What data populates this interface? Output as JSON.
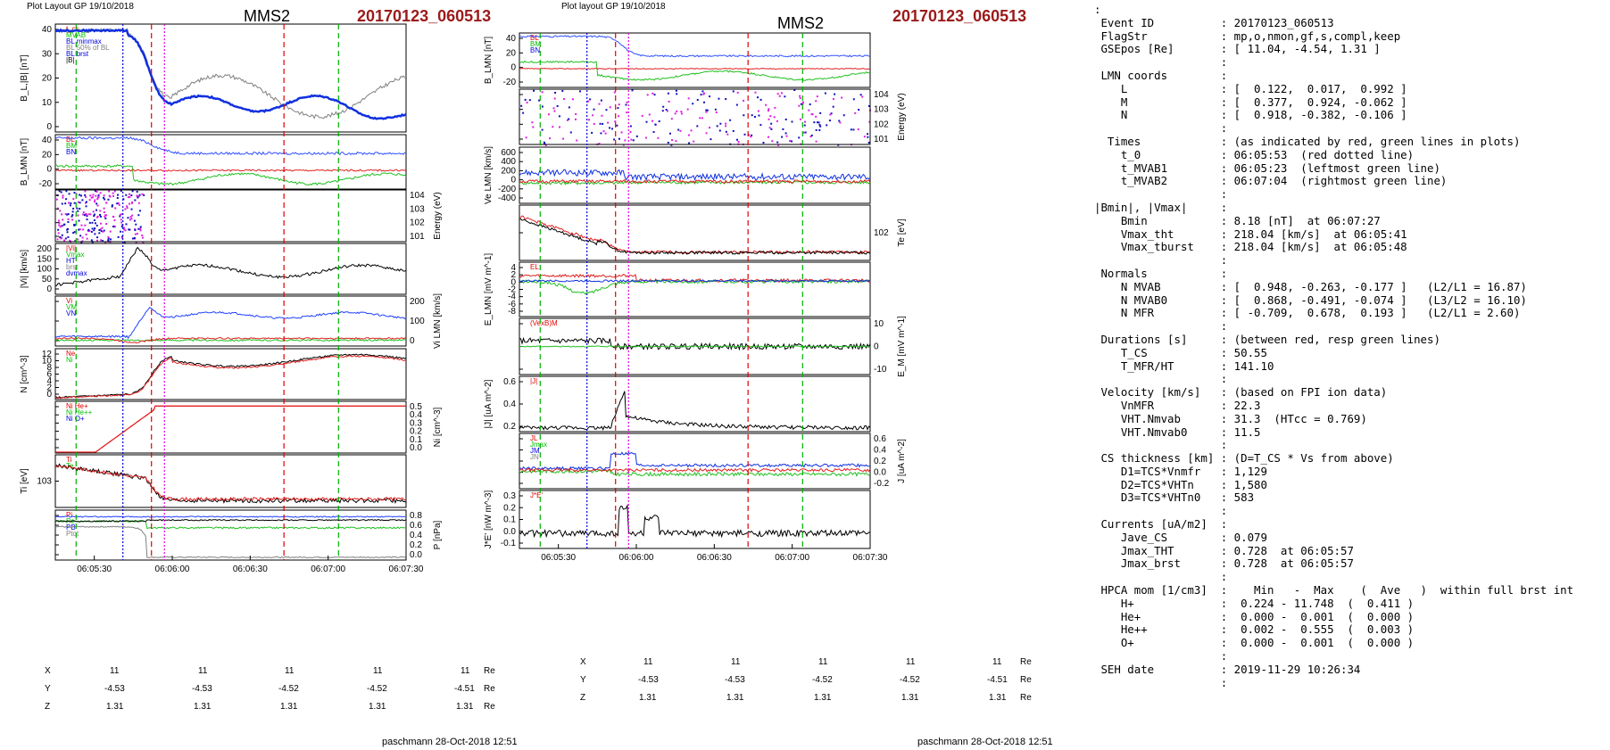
{
  "left": {
    "layout_label": "Plot Layout GP 19/10/2018",
    "spacecraft": "MMS2",
    "event": "20170123_060513",
    "x_ticks": [
      "06:05:30",
      "06:06:00",
      "06:06:30",
      "06:07:00",
      "06:07:30"
    ],
    "panels": [
      {
        "ylabel": "B_L,|B| [nT]",
        "yticks": [
          "40",
          "30",
          "20",
          "10",
          "0"
        ],
        "legend": [
          "t_cs",
          "MVAB",
          "BL minmax",
          "BL 50% of BL",
          "BL brst",
          "|B|"
        ]
      },
      {
        "ylabel": "B_LMN [nT]",
        "yticks": [
          "40",
          "20",
          "0",
          "-20"
        ],
        "legend": [
          "BL",
          "BM",
          "BN"
        ]
      },
      {
        "ylabel": "Energy (eV)",
        "yticks": [
          "10^4",
          "10^3",
          "10^2",
          "10^1"
        ],
        "legend": []
      },
      {
        "ylabel": "|Vi| [km/s]",
        "yticks": [
          "200",
          "150",
          "100",
          "50",
          "0"
        ],
        "legend": [
          "|Vi|",
          "Vmax",
          "HT",
          "brst",
          "dvmax"
        ]
      },
      {
        "ylabel": "Vi LMN [km/s]",
        "yticks": [
          "200",
          "100",
          "0"
        ],
        "legend": [
          "Vi",
          "VM",
          "VN"
        ]
      },
      {
        "ylabel": "N [cm^-3]",
        "yticks": [
          "12",
          "10",
          "8",
          "6",
          "4",
          "2",
          "0"
        ],
        "legend": [
          "Ne",
          "Ni"
        ]
      },
      {
        "ylabel": "Ni [cm^-3]",
        "yticks": [
          "0.5",
          "0.4",
          "0.3",
          "0.2",
          "0.1",
          "0.0"
        ],
        "legend": [
          "Ni He+",
          "Ni He++",
          "Ni O+"
        ]
      },
      {
        "ylabel": "Ti [eV]",
        "yticks": [
          "10^3"
        ],
        "legend": [
          "Ti",
          "Te"
        ]
      },
      {
        "ylabel": "P [nPa]",
        "yticks": [
          "0.8",
          "0.6",
          "0.4",
          "0.2",
          "0.0"
        ],
        "legend": [
          "Pi",
          "Pe",
          "PB",
          "Ptot"
        ]
      }
    ],
    "coords": {
      "X": [
        "11",
        "11",
        "11",
        "11",
        "11"
      ],
      "Y": [
        "-4.53",
        "-4.53",
        "-4.52",
        "-4.52",
        "-4.51"
      ],
      "Z": [
        "1.31",
        "1.31",
        "1.31",
        "1.31",
        "1.31"
      ],
      "unit": "Re"
    },
    "footer": "paschmann 28-Oct-2018 12:51"
  },
  "right": {
    "layout_label": "Plot layout GP 19/10/2018",
    "spacecraft": "MMS2",
    "event": "20170123_060513",
    "x_ticks": [
      "06:05:30",
      "06:06:00",
      "06:06:30",
      "06:07:00",
      "06:07:30"
    ],
    "panels": [
      {
        "ylabel": "B_LMN [nT]",
        "yticks": [
          "40",
          "20",
          "0",
          "-20"
        ],
        "legend": [
          "BL",
          "BM",
          "BN"
        ]
      },
      {
        "ylabel": "Energy (eV)",
        "yticks": [
          "10^4",
          "10^3",
          "10^2",
          "10^1"
        ],
        "legend": []
      },
      {
        "ylabel": "Ve LMN [km/s]",
        "yticks": [
          "600",
          "400",
          "200",
          "0",
          "-200",
          "-400"
        ],
        "legend": []
      },
      {
        "ylabel": "Te [eV]",
        "yticks": [
          "10^2"
        ],
        "legend": []
      },
      {
        "ylabel": "E_LMN [mV m^-1]",
        "yticks": [
          "4",
          "2",
          "0",
          "-2",
          "-4",
          "-6",
          "-8"
        ],
        "legend": [
          "EL"
        ]
      },
      {
        "ylabel": "E_M [mV m^-1]",
        "yticks": [
          "10",
          "0",
          "-10"
        ],
        "legend": [
          "(VexB)M"
        ]
      },
      {
        "ylabel": "|J| [uA m^-2]",
        "yticks": [
          "0.6",
          "0.4",
          "0.2"
        ],
        "legend": [
          "|J|"
        ]
      },
      {
        "ylabel": "J [uA m^-2]",
        "yticks": [
          "0.6",
          "0.4",
          "0.2",
          "0.0",
          "-0.2"
        ],
        "legend": [
          "JL",
          "Jmax",
          "JM",
          "JN"
        ]
      },
      {
        "ylabel": "J*E' [nW m^-3]",
        "yticks": [
          "0.3",
          "0.2",
          "0.1",
          "0.0",
          "-0.1"
        ],
        "legend": [
          "J*E'"
        ]
      }
    ],
    "coords": {
      "X": [
        "11",
        "11",
        "11",
        "11",
        "11"
      ],
      "Y": [
        "-4.53",
        "-4.53",
        "-4.52",
        "-4.52",
        "-4.51"
      ],
      "Z": [
        "1.31",
        "1.31",
        "1.31",
        "1.31",
        "1.31"
      ],
      "unit": "Re"
    },
    "footer": "paschmann 28-Oct-2018 12:51"
  },
  "info_text": ":\n Event ID          : 20170123_060513\n FlagStr           : mp,o,nmon,gf,s,compl,keep\n GSEpos [Re]       : [ 11.04, -4.54, 1.31 ]\n                   :\n LMN coords        :\n    L              : [  0.122,  0.017,  0.992 ]\n    M              : [  0.377,  0.924, -0.062 ]\n    N              : [  0.918, -0.382, -0.106 ]\n                   :\n  Times            : (as indicated by red, green lines in plots)\n    t_0            : 06:05:53  (red dotted line)\n    t_MVAB1        : 06:05:23  (leftmost green line)\n    t_MVAB2        : 06:07:04  (rightmost green line)\n                   :\n|Bmin|, |Vmax|     :\n    Bmin           : 8.18 [nT]  at 06:07:27\n    Vmax_tht       : 218.04 [km/s]  at 06:05:41\n    Vmax_tburst    : 218.04 [km/s]  at 06:05:48\n                   :\n Normals           :\n    N MVAB         : [  0.948, -0.263, -0.177 ]   (L2/L1 = 16.87)\n    N MVAB0        : [  0.868, -0.491, -0.074 ]   (L3/L2 = 16.10)\n    N MFR          : [ -0.709,  0.678,  0.193 ]   (L2/L1 = 2.60)\n                   :\n Durations [s]     : (between red, resp green lines)\n    T_CS           : 50.55\n    T_MFR/HT       : 141.10\n                   :\n Velocity [km/s]   : (based on FPI ion data)\n    VnMFR          : 22.3\n    VHT.Nmvab      : 31.3  (HTcc = 0.769)\n    VHT.Nmvab0     : 11.5\n                   :\n CS thickness [km] : (D=T_CS * Vs from above)\n    D1=TCS*Vnmfr   : 1,129\n    D2=TCS*VHTn    : 1,580\n    D3=TCS*VHTn0   : 583\n                   :\n Currents [uA/m2]  :\n    Jave_CS        : 0.079\n    Jmax_THT       : 0.728  at 06:05:57\n    Jmax_brst      : 0.728  at 06:05:57\n                   :\n HPCA mom [1/cm3]  :    Min   -  Max    (  Ave   )  within full brst int\n    H+             :  0.224 - 11.748  (  0.411 )\n    He+            :  0.000 -  0.001  (  0.000 )\n    He++           :  0.002 -  0.555  (  0.003 )\n    O+             :  0.000 -  0.001  (  0.000 )\n                   :\n SEH date          : 2019-11-29 10:26:34\n                   :",
  "chart_data": [
    {
      "type": "line",
      "title": "MMS2 20170123_060513",
      "x_range": [
        "06:05:15",
        "06:07:30"
      ],
      "x_ticks": [
        "06:05:30",
        "06:06:00",
        "06:06:30",
        "06:07:00",
        "06:07:30"
      ],
      "colors": {
        "red": "#e00000",
        "green": "#00c000",
        "blue": "#0000e0",
        "black": "#000000",
        "magenta": "#e000e0",
        "gray": "#808080"
      },
      "markers": {
        "red_dashed": [
          "06:05:52",
          "06:06:43"
        ],
        "green_dashed": [
          "06:05:23",
          "06:07:04"
        ],
        "blue_dotted": "06:05:41",
        "magenta_dotted": "06:05:57"
      },
      "series": [
        {
          "name": "B_L brst",
          "panel": 0,
          "t": [
            0,
            10,
            20,
            25,
            30,
            35,
            40,
            45,
            50,
            55,
            60,
            65,
            70,
            75,
            80,
            85,
            90,
            95,
            100,
            105,
            110,
            115,
            120,
            125,
            130,
            135
          ],
          "values": [
            39,
            39,
            39.5,
            39.5,
            38,
            25,
            12,
            9,
            11,
            10,
            10,
            9,
            11,
            12,
            9,
            14,
            9,
            9,
            16,
            16,
            14,
            10,
            10,
            7,
            5,
            5
          ]
        },
        {
          "name": "|B|",
          "panel": 0,
          "t": [
            0,
            10,
            20,
            25,
            30,
            35,
            40,
            45,
            50,
            55,
            60,
            65,
            70,
            75,
            80,
            85,
            90,
            95,
            100,
            105,
            110,
            115,
            120,
            125,
            130,
            135
          ],
          "values": [
            39,
            39,
            39.5,
            39.5,
            38,
            27,
            14,
            11,
            14,
            22,
            20,
            18,
            20,
            17,
            14,
            17,
            13,
            13,
            18,
            18,
            17,
            14,
            12,
            9,
            6,
            5
          ]
        },
        {
          "name": "N_i",
          "panel": 5,
          "t": [
            0,
            10,
            20,
            25,
            30,
            35,
            40,
            45,
            50,
            60,
            70,
            80,
            90,
            100,
            110,
            120,
            130,
            135
          ],
          "values": [
            0.3,
            0.4,
            0.6,
            0.8,
            1.5,
            3,
            8,
            11.5,
            11,
            10.5,
            9.5,
            10,
            9,
            8,
            8.5,
            9,
            9.5,
            9.5
          ]
        },
        {
          "name": "|Vi|",
          "panel": 3,
          "t": [
            0,
            10,
            20,
            25,
            28,
            30,
            33,
            36,
            40,
            45,
            55,
            65,
            75,
            85,
            95,
            105,
            115,
            125,
            135
          ],
          "values": [
            40,
            50,
            70,
            100,
            150,
            200,
            190,
            120,
            100,
            100,
            110,
            130,
            140,
            120,
            100,
            100,
            105,
            100,
            100
          ]
        },
        {
          "name": "|J|",
          "panel": 16,
          "t": [
            0,
            10,
            20,
            30,
            35,
            38,
            40,
            42,
            45,
            50,
            60,
            70,
            80,
            90,
            100,
            110,
            120,
            130,
            135
          ],
          "values": [
            0.02,
            0.03,
            0.05,
            0.08,
            0.2,
            0.65,
            0.3,
            0.2,
            0.15,
            0.1,
            0.08,
            0.05,
            0.06,
            0.05,
            0.05,
            0.05,
            0.05,
            0.05,
            0.05
          ]
        }
      ]
    }
  ]
}
